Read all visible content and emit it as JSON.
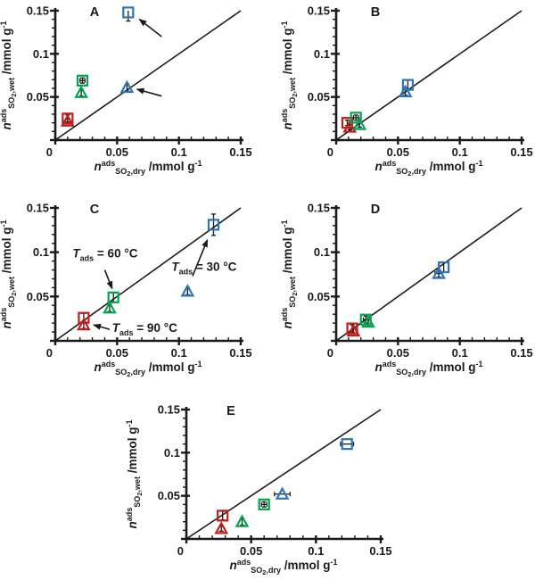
{
  "colors": {
    "t30": "#2e75b6",
    "t60": "#00a551",
    "t90": "#c01d1d",
    "axis": "#1a1a1a"
  },
  "axis": {
    "min": 0,
    "max": 0.15,
    "major": [
      0,
      0.05,
      0.1,
      0.15
    ],
    "major_labels": [
      "0",
      "0.05",
      "0.1",
      "0.15"
    ],
    "minor_step": 0.01,
    "xlabel_parts": [
      {
        "t": "n",
        "s": "bi"
      },
      {
        "t": "ads",
        "s": "sup"
      },
      {
        "t": "SO",
        "s": "sub"
      },
      {
        "t": "2",
        "s": "subsub"
      },
      {
        "t": ",dry",
        "s": "sub"
      },
      {
        "t": " /mmol g",
        "s": "b"
      },
      {
        "t": "-1",
        "s": "sup"
      }
    ],
    "ylabel_parts": [
      {
        "t": "n",
        "s": "bi"
      },
      {
        "t": "ads",
        "s": "sup"
      },
      {
        "t": "SO",
        "s": "sub"
      },
      {
        "t": "2",
        "s": "subsub"
      },
      {
        "t": ",wet",
        "s": "sub"
      },
      {
        "t": " /mmol g",
        "s": "b"
      },
      {
        "t": "-1",
        "s": "sup"
      }
    ]
  },
  "chart_data": [
    {
      "type": "scatter",
      "panel": "A",
      "points": [
        {
          "c": "t90",
          "m": "square",
          "x": 0.01,
          "y": 0.025,
          "ey": 0.004
        },
        {
          "c": "t90",
          "m": "triangle",
          "x": 0.01,
          "y": 0.022,
          "ey": 0.003
        },
        {
          "c": "t60",
          "m": "square",
          "x": 0.022,
          "y": 0.069,
          "ex": 0.002,
          "ey": 0.003
        },
        {
          "c": "t60",
          "m": "triangle",
          "x": 0.021,
          "y": 0.055,
          "ey": 0.004
        },
        {
          "c": "t30",
          "m": "triangle",
          "x": 0.058,
          "y": 0.061,
          "ey": 0.004
        },
        {
          "c": "t30",
          "m": "square",
          "x": 0.059,
          "y": 0.148,
          "ey": 0.01
        }
      ],
      "arrows": [
        {
          "x1": 0.086,
          "y1": 0.12,
          "x2": 0.068,
          "y2": 0.14
        },
        {
          "x1": 0.086,
          "y1": 0.051,
          "x2": 0.066,
          "y2": 0.059
        }
      ],
      "annotations": []
    },
    {
      "type": "scatter",
      "panel": "B",
      "points": [
        {
          "c": "t90",
          "m": "square",
          "x": 0.009,
          "y": 0.02,
          "ey": 0.003
        },
        {
          "c": "t90",
          "m": "triangle",
          "x": 0.011,
          "y": 0.015,
          "ey": 0.003
        },
        {
          "c": "t60",
          "m": "square",
          "x": 0.016,
          "y": 0.026,
          "ex": 0.002,
          "ey": 0.003
        },
        {
          "c": "t60",
          "m": "triangle",
          "x": 0.019,
          "y": 0.018,
          "ey": 0.003
        },
        {
          "c": "t30",
          "m": "triangle",
          "x": 0.056,
          "y": 0.056,
          "ey": 0.004
        },
        {
          "c": "t30",
          "m": "square",
          "x": 0.058,
          "y": 0.064,
          "ey": 0.006
        }
      ],
      "arrows": [],
      "annotations": []
    },
    {
      "type": "scatter",
      "panel": "C",
      "points": [
        {
          "c": "t90",
          "m": "square",
          "x": 0.023,
          "y": 0.026,
          "ey": 0.005
        },
        {
          "c": "t90",
          "m": "triangle",
          "x": 0.023,
          "y": 0.018,
          "ey": 0.004
        },
        {
          "c": "t60",
          "m": "square",
          "x": 0.047,
          "y": 0.049,
          "ey": 0.005
        },
        {
          "c": "t60",
          "m": "triangle",
          "x": 0.044,
          "y": 0.037,
          "ey": 0.004
        },
        {
          "c": "t30",
          "m": "triangle",
          "x": 0.107,
          "y": 0.056,
          "ey": 0.004
        },
        {
          "c": "t30",
          "m": "square",
          "x": 0.128,
          "y": 0.131,
          "ey": 0.012
        }
      ],
      "arrows": [
        {
          "x1": 0.04,
          "y1": 0.08,
          "x2": 0.046,
          "y2": 0.059
        },
        {
          "x1": 0.111,
          "y1": 0.073,
          "x2": 0.123,
          "y2": 0.114
        },
        {
          "x1": 0.044,
          "y1": 0.013,
          "x2": 0.031,
          "y2": 0.018
        }
      ],
      "annotations": [
        {
          "c": "t60",
          "x": 0.014,
          "y": 0.094,
          "parts": [
            {
              "t": "T",
              "s": "bi"
            },
            {
              "t": "ads",
              "s": "sub"
            },
            {
              "t": " = 60 °C",
              "s": "b"
            }
          ]
        },
        {
          "c": "t30",
          "x": 0.094,
          "y": 0.079,
          "parts": [
            {
              "t": "T",
              "s": "bi"
            },
            {
              "t": "ads",
              "s": "sub"
            },
            {
              "t": " = 30 °C",
              "s": "b"
            }
          ]
        },
        {
          "c": "t90",
          "x": 0.046,
          "y": 0.01,
          "parts": [
            {
              "t": "T",
              "s": "bi"
            },
            {
              "t": "ads",
              "s": "sub"
            },
            {
              "t": " = 90 °C",
              "s": "b"
            }
          ]
        }
      ]
    },
    {
      "type": "scatter",
      "panel": "D",
      "points": [
        {
          "c": "t90",
          "m": "square",
          "x": 0.013,
          "y": 0.014,
          "ey": 0.004
        },
        {
          "c": "t90",
          "m": "triangle",
          "x": 0.014,
          "y": 0.011,
          "ey": 0.003
        },
        {
          "c": "t60",
          "m": "square",
          "x": 0.024,
          "y": 0.024,
          "ex": 0.002,
          "ey": 0.004
        },
        {
          "c": "t60",
          "m": "triangle",
          "x": 0.026,
          "y": 0.021,
          "ey": 0.003
        },
        {
          "c": "t30",
          "m": "triangle",
          "x": 0.083,
          "y": 0.076,
          "ex": 0.003,
          "ey": 0.004
        },
        {
          "c": "t30",
          "m": "square",
          "x": 0.087,
          "y": 0.083,
          "ey": 0.005
        }
      ],
      "arrows": [],
      "annotations": []
    },
    {
      "type": "scatter",
      "panel": "E",
      "points": [
        {
          "c": "t90",
          "m": "square",
          "x": 0.028,
          "y": 0.027,
          "ey": 0.005
        },
        {
          "c": "t90",
          "m": "triangle",
          "x": 0.027,
          "y": 0.012,
          "ey": 0.003
        },
        {
          "c": "t60",
          "m": "triangle",
          "x": 0.043,
          "y": 0.02,
          "ey": 0.004
        },
        {
          "c": "t60",
          "m": "square",
          "x": 0.06,
          "y": 0.04,
          "ex": 0.002,
          "ey": 0.003
        },
        {
          "c": "t30",
          "m": "triangle",
          "x": 0.074,
          "y": 0.052,
          "ex": 0.006
        },
        {
          "c": "t30",
          "m": "square",
          "x": 0.124,
          "y": 0.11,
          "ex": 0.005
        }
      ],
      "arrows": [],
      "annotations": []
    }
  ]
}
